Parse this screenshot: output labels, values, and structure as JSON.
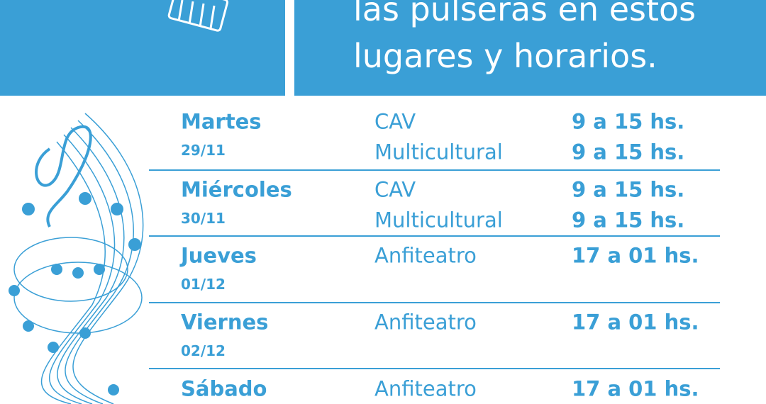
{
  "header": {
    "lines": [
      "las pulseras en estos",
      "lugares y horarios."
    ]
  },
  "schedule": [
    {
      "day": "Martes",
      "date": "29/11",
      "slots": [
        {
          "place": "CAV",
          "hours": "9 a 15 hs."
        },
        {
          "place": "Multicultural",
          "hours": "9 a 15 hs."
        }
      ]
    },
    {
      "day": "Miércoles",
      "date": "30/11",
      "slots": [
        {
          "place": "CAV",
          "hours": "9 a 15 hs."
        },
        {
          "place": "Multicultural",
          "hours": "9 a 15 hs."
        }
      ]
    },
    {
      "day": "Jueves",
      "date": "01/12",
      "slots": [
        {
          "place": "Anfiteatro",
          "hours": "17 a 01 hs."
        }
      ]
    },
    {
      "day": "Viernes",
      "date": "02/12",
      "slots": [
        {
          "place": "Anfiteatro",
          "hours": "17 a 01 hs."
        }
      ]
    },
    {
      "day": "Sábado",
      "slots": [
        {
          "place": "Anfiteatro",
          "hours": "17 a 01 hs."
        }
      ]
    }
  ]
}
